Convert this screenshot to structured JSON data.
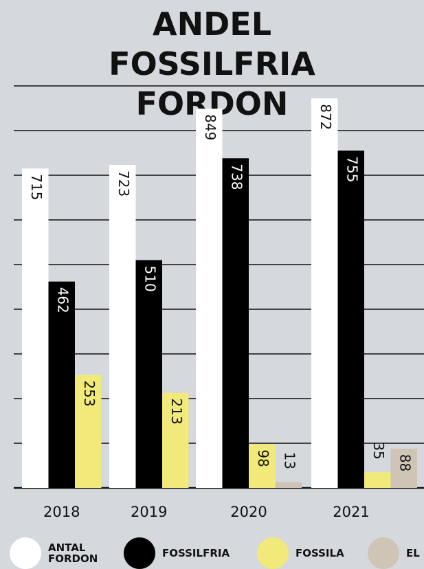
{
  "chart_data": {
    "type": "bar",
    "title": "ANDEL FOSSILFRIA FORDON",
    "categories": [
      "2018",
      "2019",
      "2020",
      "2021"
    ],
    "series": [
      {
        "name": "ANTAL FORDON",
        "color": "#ffffff",
        "values": [
          715,
          723,
          849,
          872
        ]
      },
      {
        "name": "FOSSILFRIA",
        "color": "#000000",
        "values": [
          462,
          510,
          738,
          755
        ]
      },
      {
        "name": "FOSSILA",
        "color": "#f1e97a",
        "values": [
          253,
          213,
          98,
          35
        ]
      },
      {
        "name": "EL",
        "color": "#cec5b7",
        "values": [
          null,
          null,
          13,
          88
        ]
      }
    ],
    "ylim": [
      0,
      900
    ],
    "yticks": [
      0,
      100,
      200,
      300,
      400,
      500,
      600,
      700,
      800,
      900
    ],
    "grid": true
  }
}
